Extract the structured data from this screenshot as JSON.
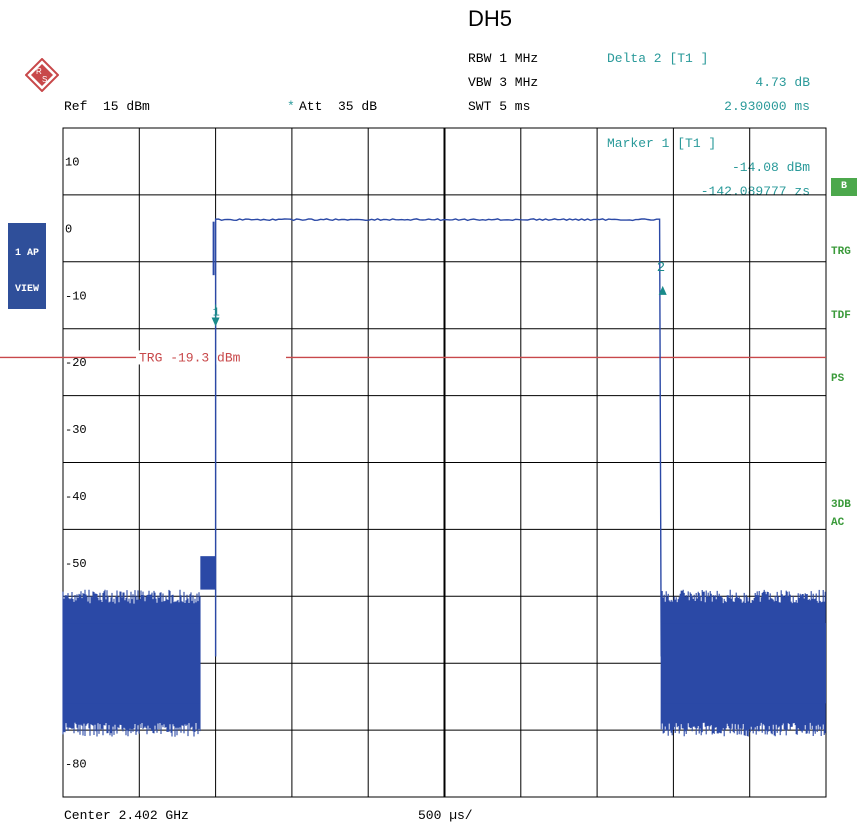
{
  "header": {
    "title": "DH5",
    "rbw": "RBW 1 MHz",
    "vbw": "VBW 3 MHz",
    "swt": "SWT 5 ms",
    "ref": "Ref  15 dBm",
    "att_marker": "*",
    "att": "Att  35 dB"
  },
  "delta_marker": {
    "label": "Delta 2 [T1 ]",
    "value": "4.73 dB",
    "time": "2.930000 ms"
  },
  "marker1": {
    "label": "Marker 1 [T1 ]",
    "value": "-14.08 dBm",
    "time": "-142.089777 zs"
  },
  "side_labels": {
    "b": "B",
    "trg": "TRG",
    "tdf": "TDF",
    "ps": "PS",
    "db3": "3DB",
    "ac": "AC",
    "ap_1": "1 AP",
    "ap_2": "VIEW"
  },
  "footer": {
    "center": "Center 2.402 GHz",
    "span_per_div": "500 µs/"
  },
  "trigger_line": {
    "label": "TRG -19.3 dBm",
    "level_dbm": -19.3
  },
  "colors": {
    "trace": "#2b49a6",
    "trigger": "#c8484a",
    "marker": "#1a8a8a",
    "grid": "#000000"
  },
  "chart_data": {
    "type": "line",
    "title": "DH5",
    "xlabel": "",
    "ylabel": "",
    "x_unit": "ms",
    "x_range_ms": [
      0,
      5
    ],
    "ylim": [
      -85,
      15
    ],
    "y_ticks": [
      10,
      0,
      -10,
      -20,
      -30,
      -40,
      -50,
      -80
    ],
    "series": [
      {
        "x_ms": [
          0.0,
          0.9,
          0.9,
          1.0,
          1.0,
          3.92,
          3.92,
          5.0
        ],
        "y_dbm": [
          -64,
          -64,
          -49,
          -49,
          1.3,
          1.3,
          -64,
          -64
        ]
      }
    ],
    "markers": [
      {
        "id": "1",
        "x_ms": 1.0,
        "y_dbm": -14.08
      },
      {
        "id": "2",
        "x_ms": 3.93,
        "y_dbm": -9.35
      }
    ]
  }
}
